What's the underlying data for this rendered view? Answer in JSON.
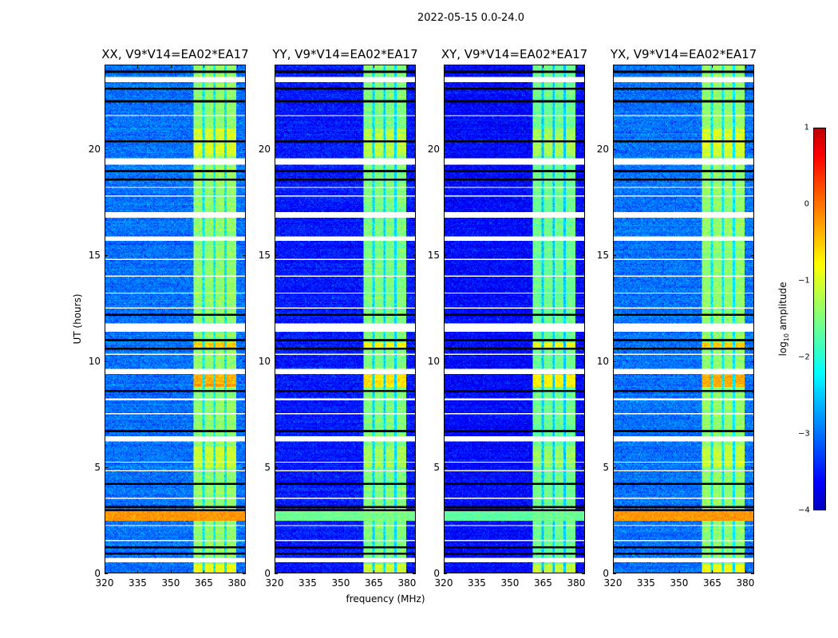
{
  "suptitle": "2022-05-15 0.0-24.0",
  "chart_data": {
    "type": "heatmap",
    "xlabel": "frequency (MHz)",
    "ylabel": "UT (hours)",
    "xlim": [
      320,
      384
    ],
    "ylim": [
      0,
      24
    ],
    "xticks": [
      "320",
      "335",
      "350",
      "365",
      "380"
    ],
    "xtick_values": [
      320,
      335,
      350,
      365,
      380
    ],
    "yticks": [
      "0",
      "5",
      "10",
      "15",
      "20"
    ],
    "ytick_values": [
      0,
      5,
      10,
      15,
      20
    ],
    "colormap": "jet",
    "colorbar": {
      "label_main": "log",
      "label_sub": "10",
      "label_tail": " amplitude",
      "range": [
        -4,
        1
      ],
      "ticks": [
        "1",
        "0",
        "−1",
        "−2",
        "−3",
        "−4"
      ],
      "tick_values": [
        1,
        0,
        -1,
        -2,
        -3,
        -4
      ]
    },
    "panels": [
      {
        "title": "XX, V9*V14=EA02*EA17",
        "background_log_amp": -3.0,
        "band_log_amp": -1.4,
        "rfi_2p7h_log_amp": -0.2
      },
      {
        "title": "YY, V9*V14=EA02*EA17",
        "background_log_amp": -3.5,
        "band_log_amp": -1.5,
        "rfi_2p7h_log_amp": -1.6
      },
      {
        "title": "XY, V9*V14=EA02*EA17",
        "background_log_amp": -3.6,
        "band_log_amp": -1.6,
        "rfi_2p7h_log_amp": -1.7
      },
      {
        "title": "YX, V9*V14=EA02*EA17",
        "background_log_amp": -3.0,
        "band_log_amp": -1.4,
        "rfi_2p7h_log_amp": -0.2
      }
    ],
    "band_mhz": [
      360.5,
      380
    ],
    "band_gaps_mhz": [
      365,
      370,
      375
    ],
    "flagged_hours": [
      [
        23.2,
        23.45
      ],
      [
        21.6,
        21.65
      ],
      [
        19.3,
        19.6
      ],
      [
        18.2,
        18.25
      ],
      [
        17.8,
        17.85
      ],
      [
        16.8,
        17.05
      ],
      [
        15.7,
        15.9
      ],
      [
        14.8,
        14.85
      ],
      [
        14.0,
        14.05
      ],
      [
        13.2,
        13.25
      ],
      [
        12.5,
        12.55
      ],
      [
        11.4,
        11.8
      ],
      [
        10.3,
        10.35
      ],
      [
        9.4,
        9.65
      ],
      [
        8.15,
        8.25
      ],
      [
        7.5,
        7.55
      ],
      [
        6.2,
        6.45
      ],
      [
        5.2,
        5.25
      ],
      [
        4.8,
        4.85
      ],
      [
        3.5,
        3.55
      ],
      [
        2.2,
        2.25
      ],
      [
        1.5,
        1.55
      ],
      [
        0.5,
        0.7
      ]
    ],
    "dark_rows_hours": [
      23.7,
      22.9,
      22.3,
      20.4,
      19.0,
      18.6,
      12.2,
      11.0,
      10.6,
      8.6,
      6.7,
      4.2,
      3.1,
      2.95,
      1.2,
      0.9
    ],
    "bright_events": [
      {
        "hours": [
          2.45,
          2.9
        ],
        "scope": "all",
        "delta": 1.6
      },
      {
        "hours": [
          8.8,
          9.35
        ],
        "scope": "band",
        "delta": 1.1
      },
      {
        "hours": [
          10.55,
          10.9
        ],
        "scope": "band",
        "delta": 0.9
      },
      {
        "hours": [
          19.7,
          21.0
        ],
        "scope": "band",
        "delta": 0.4
      },
      {
        "hours": [
          0.0,
          0.4
        ],
        "scope": "band",
        "delta": 0.6
      },
      {
        "hours": [
          5.0,
          6.0
        ],
        "scope": "band",
        "delta": 0.3
      }
    ]
  }
}
